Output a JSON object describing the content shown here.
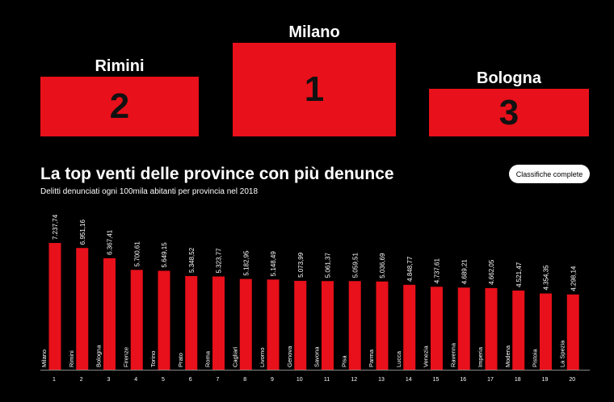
{
  "podium": {
    "first": {
      "name": "Milano",
      "rank": "1"
    },
    "second": {
      "name": "Rimini",
      "rank": "2"
    },
    "third": {
      "name": "Bologna",
      "rank": "3"
    }
  },
  "header": {
    "title": "La top venti delle province con più denunce",
    "subtitle": "Delitti denunciati ogni 100mila abitanti per provincia nel 2018",
    "button_label": "Classifiche complete"
  },
  "colors": {
    "bar": "#e8101a",
    "background": "#000000",
    "text": "#ffffff"
  },
  "chart_data": {
    "type": "bar",
    "categories": [
      "Milano",
      "Rimini",
      "Bologna",
      "Firenze",
      "Torino",
      "Prato",
      "Roma",
      "Cagliari",
      "Livorno",
      "Genova",
      "Savona",
      "Pisa",
      "Parma",
      "Lucca",
      "Venezia",
      "Ravenna",
      "Imperia",
      "Modena",
      "Pistoia",
      "La Spezia"
    ],
    "ranks": [
      "1",
      "2",
      "3",
      "4",
      "5",
      "6",
      "7",
      "8",
      "9",
      "10",
      "11",
      "12",
      "13",
      "14",
      "15",
      "16",
      "17",
      "18",
      "19",
      "20"
    ],
    "values": [
      7237.74,
      6951.16,
      6367.41,
      5700.61,
      5649.15,
      5348.52,
      5323.77,
      5182.95,
      5148.49,
      5073.99,
      5061.37,
      5059.51,
      5036.69,
      4848.77,
      4737.61,
      4689.21,
      4662.05,
      4521.47,
      4354.35,
      4298.14
    ],
    "value_labels": [
      "7.237,74",
      "6.951,16",
      "6.367,41",
      "5.700,61",
      "5.649,15",
      "5.348,52",
      "5.323,77",
      "5.182,95",
      "5.148,49",
      "5.073,99",
      "5.061,37",
      "5.059,51",
      "5.036,69",
      "4.848,77",
      "4.737,61",
      "4.689,21",
      "4.662,05",
      "4.521,47",
      "4.354,35",
      "4.298,14"
    ],
    "ylim": [
      0,
      7237.74
    ]
  }
}
